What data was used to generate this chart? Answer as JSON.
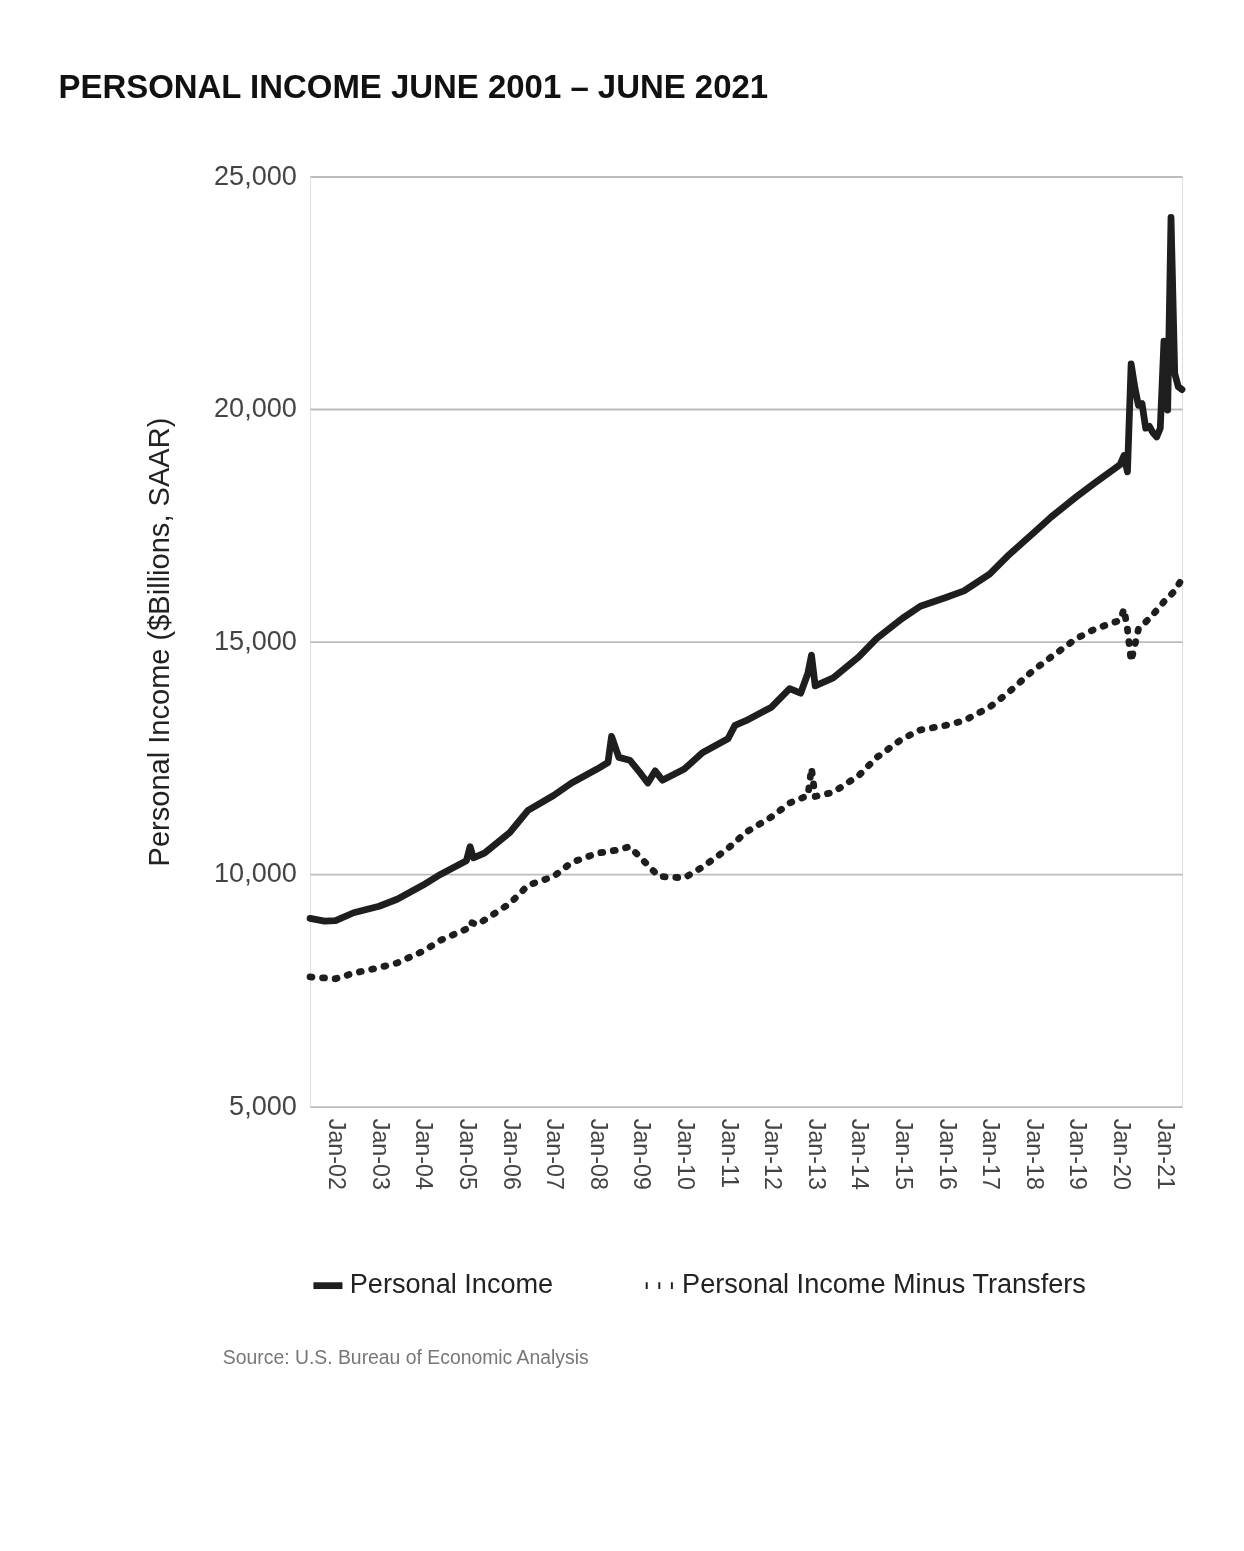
{
  "chart_data": {
    "type": "line",
    "title": "PERSONAL INCOME JUNE 2001 – JUNE 2021",
    "ylabel": "Personal Income ($Billions, SAAR)",
    "annotations": [
      "Source: U.S. Bureau of Economic Analysis"
    ],
    "xlim": [
      "2001-06",
      "2021-06"
    ],
    "ylim": [
      5000,
      25000
    ],
    "yticks": [
      {
        "value": 5000,
        "label": "5,000"
      },
      {
        "value": 10000,
        "label": "10,000"
      },
      {
        "value": 15000,
        "label": "15,000"
      },
      {
        "value": 20000,
        "label": "20,000"
      },
      {
        "value": 25000,
        "label": "25,000"
      }
    ],
    "xticks": [
      {
        "value": "2002-01",
        "label": "Jan-02"
      },
      {
        "value": "2003-01",
        "label": "Jan-03"
      },
      {
        "value": "2004-01",
        "label": "Jan-04"
      },
      {
        "value": "2005-01",
        "label": "Jan-05"
      },
      {
        "value": "2006-01",
        "label": "Jan-06"
      },
      {
        "value": "2007-01",
        "label": "Jan-07"
      },
      {
        "value": "2008-01",
        "label": "Jan-08"
      },
      {
        "value": "2009-01",
        "label": "Jan-09"
      },
      {
        "value": "2010-01",
        "label": "Jan-10"
      },
      {
        "value": "2011-01",
        "label": "Jan-11"
      },
      {
        "value": "2012-01",
        "label": "Jan-12"
      },
      {
        "value": "2013-01",
        "label": "Jan-13"
      },
      {
        "value": "2014-01",
        "label": "Jan-14"
      },
      {
        "value": "2015-01",
        "label": "Jan-15"
      },
      {
        "value": "2016-01",
        "label": "Jan-16"
      },
      {
        "value": "2017-01",
        "label": "Jan-17"
      },
      {
        "value": "2018-01",
        "label": "Jan-18"
      },
      {
        "value": "2019-01",
        "label": "Jan-19"
      },
      {
        "value": "2020-01",
        "label": "Jan-20"
      },
      {
        "value": "2021-01",
        "label": "Jan-21"
      }
    ],
    "grid": "y",
    "legend": "bottom",
    "marker": "none",
    "series": [
      {
        "name": "Personal Income",
        "color": "#1e1e1e",
        "line_style": "solid",
        "x": [
          "2001-06",
          "2001-10",
          "2002-01",
          "2002-06",
          "2003-01",
          "2003-06",
          "2004-01",
          "2004-06",
          "2005-01",
          "2005-02",
          "2005-03",
          "2005-06",
          "2006-01",
          "2006-06",
          "2007-01",
          "2007-06",
          "2008-01",
          "2008-04",
          "2008-05",
          "2008-07",
          "2008-10",
          "2009-01",
          "2009-03",
          "2009-05",
          "2009-07",
          "2010-01",
          "2010-06",
          "2011-01",
          "2011-03",
          "2011-06",
          "2012-01",
          "2012-06",
          "2012-09",
          "2012-11",
          "2012-12",
          "2013-01",
          "2013-06",
          "2014-01",
          "2014-06",
          "2015-01",
          "2015-06",
          "2016-01",
          "2016-06",
          "2017-01",
          "2017-06",
          "2018-01",
          "2018-06",
          "2019-01",
          "2019-06",
          "2020-01",
          "2020-02",
          "2020-03",
          "2020-04",
          "2020-05",
          "2020-06",
          "2020-07",
          "2020-08",
          "2020-09",
          "2020-10",
          "2020-11",
          "2020-12",
          "2021-01",
          "2021-02",
          "2021-03",
          "2021-04",
          "2021-05",
          "2021-06"
        ],
        "values": [
          9050,
          8990,
          9000,
          9170,
          9310,
          9460,
          9760,
          10000,
          10290,
          10590,
          10350,
          10450,
          10900,
          11370,
          11690,
          11960,
          12260,
          12400,
          12960,
          12510,
          12450,
          12160,
          11960,
          12220,
          12020,
          12260,
          12610,
          12910,
          13200,
          13300,
          13590,
          13990,
          13890,
          14320,
          14710,
          14050,
          14220,
          14670,
          15070,
          15500,
          15760,
          15950,
          16090,
          16450,
          16840,
          17330,
          17680,
          18120,
          18410,
          18810,
          19000,
          18650,
          20970,
          20480,
          20080,
          20120,
          19590,
          19630,
          19490,
          19400,
          19590,
          21460,
          19980,
          24120,
          20770,
          20480,
          20420
        ]
      },
      {
        "name": "Personal Income Minus Transfers",
        "color": "#1e1e1e",
        "line_style": "dotted",
        "x": [
          "2001-06",
          "2002-01",
          "2002-06",
          "2003-01",
          "2003-06",
          "2004-01",
          "2004-06",
          "2005-01",
          "2005-02",
          "2005-04",
          "2006-01",
          "2006-06",
          "2007-01",
          "2007-06",
          "2008-01",
          "2008-06",
          "2008-10",
          "2009-01",
          "2009-06",
          "2010-01",
          "2010-06",
          "2011-01",
          "2011-06",
          "2012-01",
          "2012-06",
          "2012-11",
          "2012-12",
          "2013-01",
          "2013-06",
          "2014-01",
          "2014-06",
          "2015-01",
          "2015-06",
          "2016-01",
          "2016-06",
          "2017-01",
          "2017-06",
          "2018-01",
          "2018-06",
          "2019-01",
          "2019-06",
          "2020-01",
          "2020-02",
          "2020-03",
          "2020-04",
          "2020-05",
          "2020-06",
          "2020-09",
          "2020-12",
          "2021-01",
          "2021-04",
          "2021-06"
        ],
        "values": [
          7790,
          7750,
          7870,
          7990,
          8090,
          8340,
          8580,
          8820,
          8970,
          8910,
          9370,
          9760,
          9950,
          10250,
          10450,
          10510,
          10590,
          10350,
          9950,
          9920,
          10150,
          10550,
          10900,
          11230,
          11530,
          11690,
          12280,
          11670,
          11760,
          12120,
          12510,
          12910,
          13100,
          13200,
          13300,
          13590,
          13890,
          14380,
          14670,
          15070,
          15270,
          15460,
          15700,
          15270,
          14580,
          14910,
          15270,
          15500,
          15760,
          15860,
          16090,
          16350
        ]
      }
    ]
  }
}
